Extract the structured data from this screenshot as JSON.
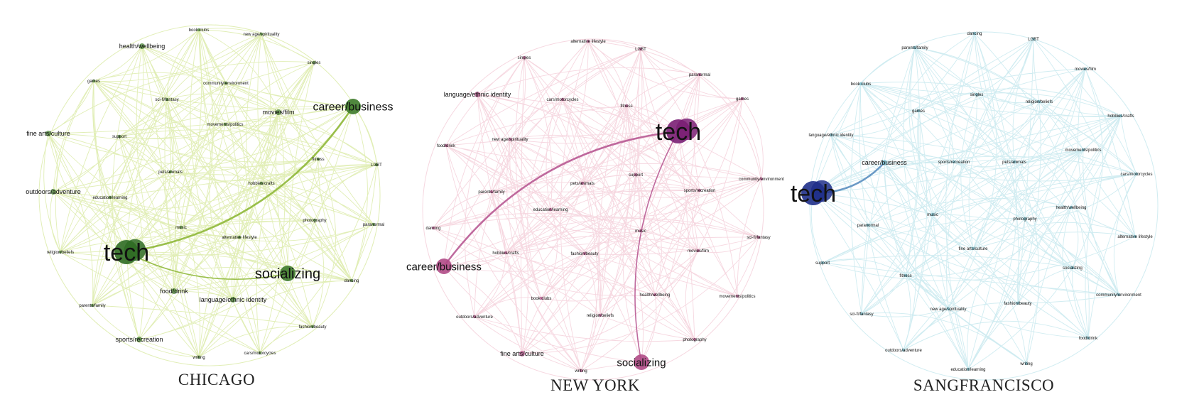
{
  "networks": [
    {
      "id": "chicago",
      "title": "CHICAGO",
      "colors": {
        "edge": "#c9e07a",
        "node": "#3d7a2a",
        "highlight": "#8fb83a",
        "big_node": "#2f6b24"
      },
      "nodes": [
        {
          "id": "tech",
          "label": "tech",
          "size": 3
        },
        {
          "id": "socializing",
          "label": "socializing",
          "size": 2
        },
        {
          "id": "career",
          "label": "career/business",
          "size": 2
        },
        {
          "id": "outdoors",
          "label": "outdoors/adventure",
          "size": 1
        },
        {
          "id": "health",
          "label": "health/wellbeing",
          "size": 1
        },
        {
          "id": "finearts",
          "label": "fine arts/culture",
          "size": 1
        },
        {
          "id": "food",
          "label": "food/drink",
          "size": 1
        },
        {
          "id": "language",
          "label": "language/ethnic identity",
          "size": 1
        },
        {
          "id": "sports",
          "label": "sports/recreation",
          "size": 1
        },
        {
          "id": "movies",
          "label": "movies/film",
          "size": 1
        },
        {
          "id": "bookclubs",
          "label": "book clubs",
          "size": 0
        },
        {
          "id": "newage",
          "label": "new age/spirituality",
          "size": 0
        },
        {
          "id": "singles",
          "label": "singles",
          "size": 0
        },
        {
          "id": "games",
          "label": "games",
          "size": 0
        },
        {
          "id": "community",
          "label": "community/environment",
          "size": 0
        },
        {
          "id": "scifi",
          "label": "sci-fi/fantasy",
          "size": 0
        },
        {
          "id": "support",
          "label": "support",
          "size": 0
        },
        {
          "id": "movements",
          "label": "movements/politics",
          "size": 0
        },
        {
          "id": "fitness",
          "label": "fitness",
          "size": 0
        },
        {
          "id": "lgbt",
          "label": "LGBT",
          "size": 0
        },
        {
          "id": "parents",
          "label": "parents/family",
          "size": 0
        },
        {
          "id": "hobbies",
          "label": "hobbies/crafts",
          "size": 0
        },
        {
          "id": "education",
          "label": "education/learning",
          "size": 0
        },
        {
          "id": "music",
          "label": "music",
          "size": 0
        },
        {
          "id": "photography",
          "label": "photography",
          "size": 0
        },
        {
          "id": "altlife",
          "label": "alternative lifestyle",
          "size": 0
        },
        {
          "id": "paranormal",
          "label": "paranormal",
          "size": 0
        },
        {
          "id": "religion",
          "label": "religion/beliefs",
          "size": 0
        },
        {
          "id": "pets",
          "label": "pets/animals",
          "size": 0
        },
        {
          "id": "dancing",
          "label": "dancing",
          "size": 0
        },
        {
          "id": "fashion",
          "label": "fashion/beauty",
          "size": 0
        },
        {
          "id": "cars",
          "label": "cars/motorcycles",
          "size": 0
        },
        {
          "id": "writing",
          "label": "writing",
          "size": 0
        }
      ],
      "highlight_edges": [
        [
          "tech",
          "career"
        ],
        [
          "tech",
          "socializing"
        ]
      ]
    },
    {
      "id": "newyork",
      "title": "NEW YORK",
      "colors": {
        "edge": "#efb6c6",
        "node": "#b04a86",
        "highlight": "#b85a94",
        "big_node": "#7a1f74"
      },
      "nodes": [
        {
          "id": "tech",
          "label": "tech",
          "size": 3
        },
        {
          "id": "career",
          "label": "career/business",
          "size": 2
        },
        {
          "id": "socializing",
          "label": "socializing",
          "size": 2
        },
        {
          "id": "altlife",
          "label": "alternative lifestyle",
          "size": 0
        },
        {
          "id": "lgbt",
          "label": "LGBT",
          "size": 0
        },
        {
          "id": "singles",
          "label": "singles",
          "size": 0
        },
        {
          "id": "paranormal",
          "label": "paranormal",
          "size": 0
        },
        {
          "id": "language",
          "label": "language/ethnic identity",
          "size": 1
        },
        {
          "id": "cars",
          "label": "cars/motorcycles",
          "size": 0
        },
        {
          "id": "fitness",
          "label": "fitness",
          "size": 0
        },
        {
          "id": "games",
          "label": "games",
          "size": 0
        },
        {
          "id": "food",
          "label": "food/drink",
          "size": 0
        },
        {
          "id": "newage",
          "label": "new age/spirituality",
          "size": 0
        },
        {
          "id": "pets",
          "label": "pets/animals",
          "size": 0
        },
        {
          "id": "support",
          "label": "support",
          "size": 0
        },
        {
          "id": "community",
          "label": "community/environment",
          "size": 0
        },
        {
          "id": "parents",
          "label": "parents/family",
          "size": 0
        },
        {
          "id": "sports",
          "label": "sports/recreation",
          "size": 0
        },
        {
          "id": "dancing",
          "label": "dancing",
          "size": 0
        },
        {
          "id": "education",
          "label": "education/learning",
          "size": 0
        },
        {
          "id": "music",
          "label": "music",
          "size": 0
        },
        {
          "id": "scifi",
          "label": "sci-fi/fantasy",
          "size": 0
        },
        {
          "id": "hobbies",
          "label": "hobbies/crafts",
          "size": 0
        },
        {
          "id": "fashion",
          "label": "fashion/beauty",
          "size": 0
        },
        {
          "id": "movies",
          "label": "movies/film",
          "size": 0
        },
        {
          "id": "health",
          "label": "health/wellbeing",
          "size": 0
        },
        {
          "id": "movements",
          "label": "movements/politics",
          "size": 0
        },
        {
          "id": "bookclubs",
          "label": "book clubs",
          "size": 0
        },
        {
          "id": "outdoors",
          "label": "outdoors/adventure",
          "size": 0
        },
        {
          "id": "religion",
          "label": "religion/beliefs",
          "size": 0
        },
        {
          "id": "photography",
          "label": "photography",
          "size": 0
        },
        {
          "id": "finearts",
          "label": "fine arts/culture",
          "size": 1
        },
        {
          "id": "writing",
          "label": "writing",
          "size": 0
        }
      ],
      "highlight_edges": [
        [
          "tech",
          "career"
        ],
        [
          "tech",
          "socializing"
        ]
      ]
    },
    {
      "id": "sanfrancisco",
      "title": "SANGFRANCISCO",
      "colors": {
        "edge": "#a9dde6",
        "node": "#6fb8c8",
        "highlight": "#5b8fc0",
        "big_node": "#1f2f8a"
      },
      "nodes": [
        {
          "id": "tech",
          "label": "tech",
          "size": 3
        },
        {
          "id": "career",
          "label": "career/business",
          "size": 1
        },
        {
          "id": "dancing",
          "label": "dancing",
          "size": 0
        },
        {
          "id": "lgbt",
          "label": "LGBT",
          "size": 0
        },
        {
          "id": "parents",
          "label": "parents/family",
          "size": 0
        },
        {
          "id": "movies",
          "label": "movies/film",
          "size": 0
        },
        {
          "id": "bookclubs",
          "label": "book clubs",
          "size": 0
        },
        {
          "id": "singles",
          "label": "singles",
          "size": 0
        },
        {
          "id": "religion",
          "label": "religion/beliefs",
          "size": 0
        },
        {
          "id": "games",
          "label": "games",
          "size": 0
        },
        {
          "id": "hobbies",
          "label": "hobbies/crafts",
          "size": 0
        },
        {
          "id": "language",
          "label": "language/ethnic identity",
          "size": 0
        },
        {
          "id": "movements",
          "label": "movements/politics",
          "size": 0
        },
        {
          "id": "sports",
          "label": "sports/recreation",
          "size": 0
        },
        {
          "id": "pets",
          "label": "pets/animals",
          "size": 0
        },
        {
          "id": "cars",
          "label": "cars/motorcycles",
          "size": 0
        },
        {
          "id": "music",
          "label": "music",
          "size": 0
        },
        {
          "id": "photography",
          "label": "photography",
          "size": 0
        },
        {
          "id": "health",
          "label": "health/wellbeing",
          "size": 0
        },
        {
          "id": "paranormal",
          "label": "paranormal",
          "size": 0
        },
        {
          "id": "altlife",
          "label": "alternative lifestyle",
          "size": 0
        },
        {
          "id": "finearts",
          "label": "fine arts/culture",
          "size": 0
        },
        {
          "id": "support",
          "label": "support",
          "size": 0
        },
        {
          "id": "socializing",
          "label": "socializing",
          "size": 0
        },
        {
          "id": "fitness",
          "label": "fitness",
          "size": 0
        },
        {
          "id": "community",
          "label": "community/environment",
          "size": 0
        },
        {
          "id": "newage",
          "label": "new age/spirituality",
          "size": 0
        },
        {
          "id": "fashion",
          "label": "fashion/beauty",
          "size": 0
        },
        {
          "id": "scifi",
          "label": "sci-fi/fantasy",
          "size": 0
        },
        {
          "id": "food",
          "label": "food/drink",
          "size": 0
        },
        {
          "id": "outdoors",
          "label": "outdoors/adventure",
          "size": 0
        },
        {
          "id": "education",
          "label": "education/learning",
          "size": 0
        },
        {
          "id": "writing",
          "label": "writing",
          "size": 0
        }
      ],
      "highlight_edges": [
        [
          "tech",
          "career"
        ]
      ]
    }
  ]
}
